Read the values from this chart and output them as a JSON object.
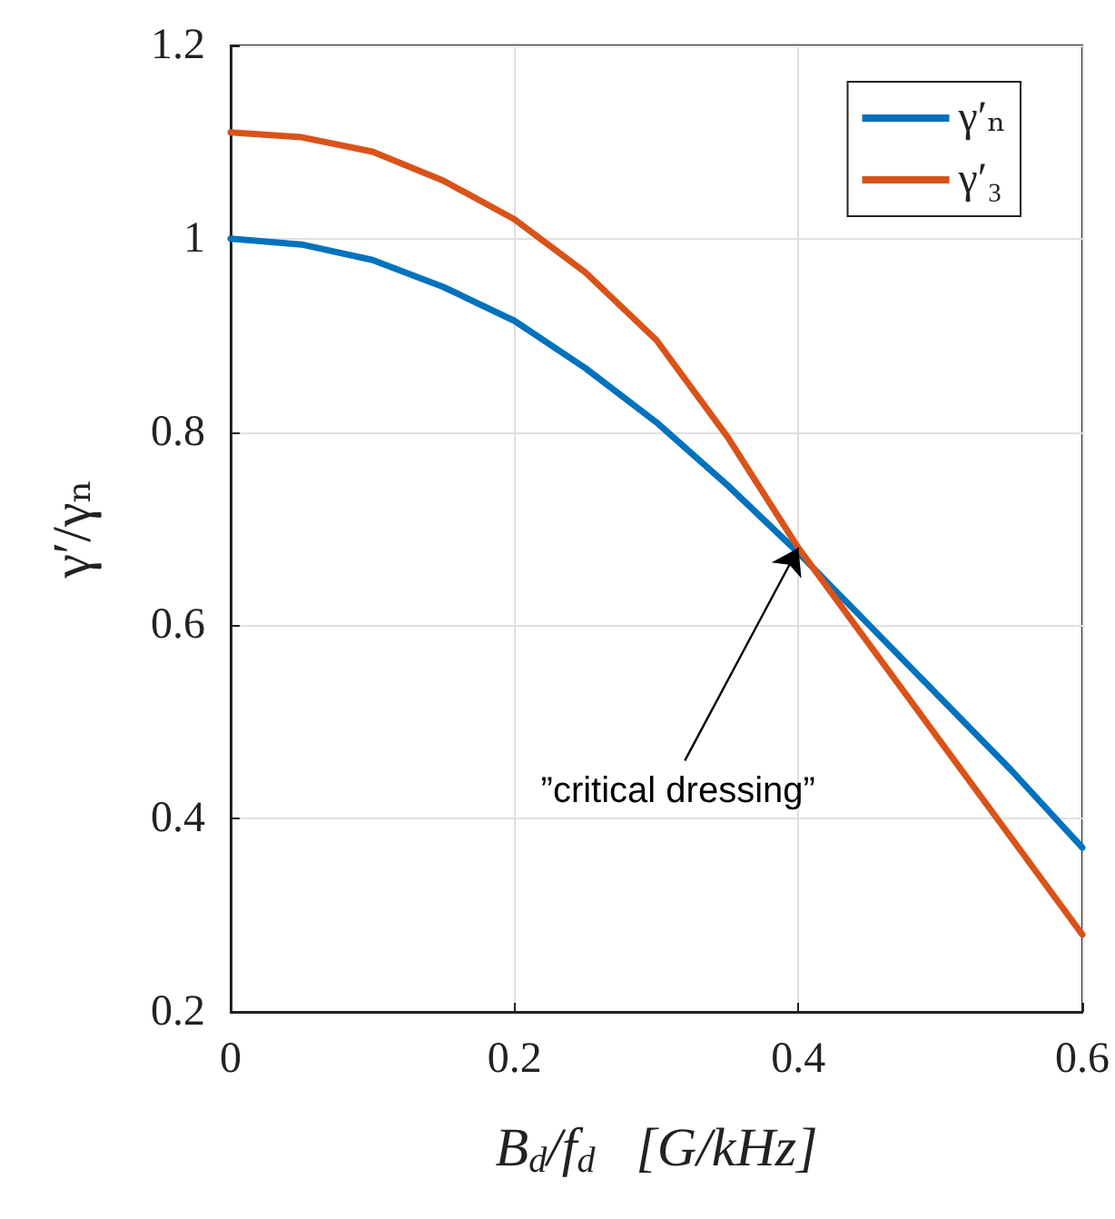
{
  "chart_data": {
    "type": "line",
    "xlabel": "B$_{d}$/f$_{d}$   [G/kHz]",
    "ylabel": "γ′/γₙ",
    "x": [
      0,
      0.05,
      0.1,
      0.15,
      0.2,
      0.25,
      0.3,
      0.35,
      0.4,
      0.45,
      0.5,
      0.55,
      0.6
    ],
    "series": [
      {
        "name": "γ′ₙ",
        "color": "#0072bd",
        "values": [
          1,
          0.994,
          0.978,
          0.95,
          0.915,
          0.866,
          0.81,
          0.745,
          0.675,
          0.6,
          0.525,
          0.45,
          0.37
        ]
      },
      {
        "name": "γ′₃",
        "color": "#d95319",
        "values": [
          1.11,
          1.105,
          1.09,
          1.06,
          1.02,
          0.965,
          0.895,
          0.795,
          0.68,
          0.58,
          0.48,
          0.38,
          0.28
        ]
      }
    ],
    "xlim": [
      0,
      0.6
    ],
    "xticks": [
      0,
      0.2,
      0.4,
      0.6
    ],
    "ylim": [
      0.2,
      1.2
    ],
    "yticks": [
      0.2,
      0.4,
      0.6,
      0.8,
      1,
      1.2
    ],
    "grid": true,
    "legend": "top right",
    "marker": "none",
    "line_style": "solid",
    "annotations": [
      {
        "text": "”critical dressing”",
        "x": 0.4,
        "y": 0.68
      }
    ]
  }
}
